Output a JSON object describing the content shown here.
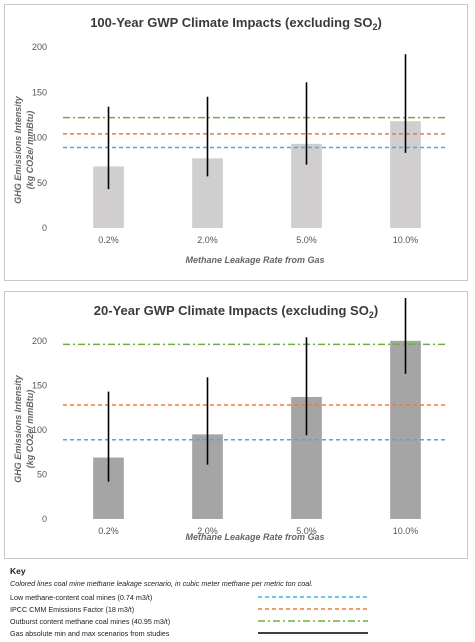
{
  "charts": [
    {
      "title": "100-Year GWP Climate Impacts (excluding SO",
      "title_sub": "2",
      "ylabel_line1": "GHG Emissions Intensity",
      "ylabel_line2": "(kg CO2e/ mmBtu)",
      "xlabel": "Methane Leakage Rate from Gas"
    },
    {
      "title": "20-Year GWP Climate Impacts (excluding SO",
      "title_sub": "2",
      "ylabel_line1": "GHG Emissions Intensity",
      "ylabel_line2": "(kg CO2e/ mmBtu)",
      "xlabel": "Methane Leakage Rate from Gas"
    }
  ],
  "chart_data": [
    {
      "type": "bar",
      "categories": [
        "0.2%",
        "2.0%",
        "5.0%",
        "10.0%"
      ],
      "values": [
        68,
        77,
        93,
        118
      ],
      "error_min": [
        43,
        57,
        70,
        83
      ],
      "error_max": [
        134,
        145,
        161,
        192
      ],
      "ylim": [
        0,
        200
      ],
      "yticks": [
        0,
        50,
        100,
        150,
        200
      ],
      "reference_lines": [
        {
          "label": "Low methane-content coal mines (0.74 m3/t)",
          "value": 89,
          "color": "#3fb0e0",
          "style": "dashed"
        },
        {
          "label": "IPCC CMM Emissions Factor (18 m3/t)",
          "value": 104,
          "color": "#ed7d31",
          "style": "dashed"
        },
        {
          "label": "Outburst content methane coal mines (40.95 m3/t)",
          "value": 122,
          "color": "#70ad47",
          "style": "dashdot"
        }
      ],
      "bar_color": "#d0cece",
      "errorbar_color": "#000000"
    },
    {
      "type": "bar",
      "categories": [
        "0.2%",
        "2.0%",
        "5.0%",
        "10.0%"
      ],
      "values": [
        69,
        95,
        137,
        200
      ],
      "error_min": [
        42,
        61,
        94,
        163
      ],
      "error_max": [
        143,
        159,
        204,
        248
      ],
      "ylim": [
        0,
        220
      ],
      "yticks": [
        0,
        50,
        100,
        150,
        200
      ],
      "reference_lines": [
        {
          "label": "Low methane-content coal mines (0.74 m3/t)",
          "value": 89,
          "color": "#3fb0e0",
          "style": "dashed"
        },
        {
          "label": "IPCC CMM Emissions Factor (18 m3/t)",
          "value": 128,
          "color": "#ed7d31",
          "style": "dashed"
        },
        {
          "label": "Outburst content methane coal mines (40.95 m3/t)",
          "value": 196,
          "color": "#70ad47",
          "style": "dashdot"
        }
      ],
      "bar_color": "#a5a5a5",
      "errorbar_color": "#000000"
    }
  ],
  "key": {
    "title": "Key",
    "description": "Colored lines coal mine methane leakage scenario, in cubic meter methane per metric ton coal.",
    "items": [
      {
        "label": "Low methane-content coal mines (0.74 m3/t)",
        "color": "#3fb0e0",
        "style": "dashed"
      },
      {
        "label": "IPCC CMM Emissions Factor (18 m3/t)",
        "color": "#ed7d31",
        "style": "dashed"
      },
      {
        "label": "Outburst content methane coal mines (40.95 m3/t)",
        "color": "#70ad47",
        "style": "dashdot"
      },
      {
        "label": "Gas absolute min and max scenarios from studies",
        "color": "#000000",
        "style": "solid"
      }
    ]
  }
}
